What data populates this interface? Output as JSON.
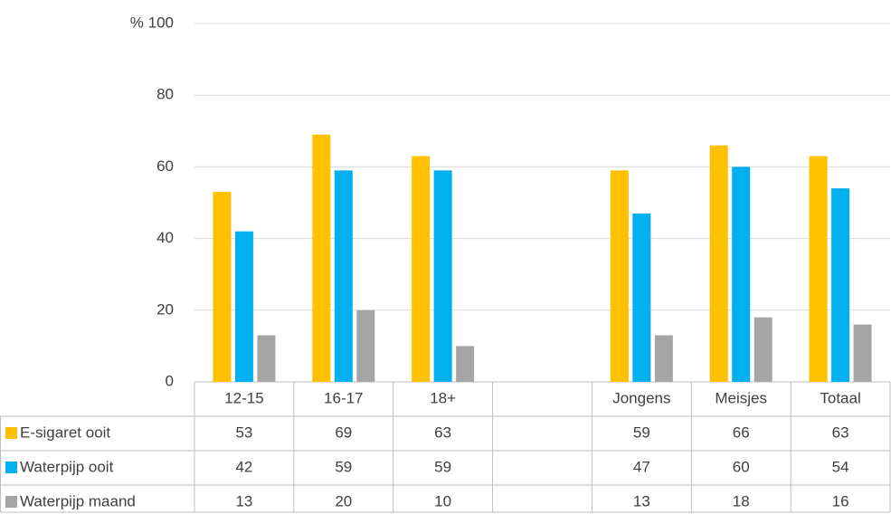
{
  "chart_data": {
    "type": "bar",
    "categories": [
      "12-15",
      "16-17",
      "18+",
      null,
      "Jongens",
      "Meisjes",
      "Totaal"
    ],
    "series": [
      {
        "name": "E-sigaret ooit",
        "color": "#ffc000",
        "values": [
          53,
          69,
          63,
          null,
          59,
          66,
          63
        ]
      },
      {
        "name": "Waterpijp ooit",
        "color": "#00b0f0",
        "values": [
          42,
          59,
          59,
          null,
          47,
          60,
          54
        ]
      },
      {
        "name": "Waterpijp maand",
        "color": "#a5a5a5",
        "values": [
          13,
          20,
          10,
          null,
          13,
          18,
          16
        ]
      }
    ],
    "ylim": [
      0,
      100
    ],
    "yticks": [
      0,
      20,
      40,
      60,
      80,
      {
        "value": 100,
        "label": "% 100"
      }
    ],
    "grid": true
  }
}
